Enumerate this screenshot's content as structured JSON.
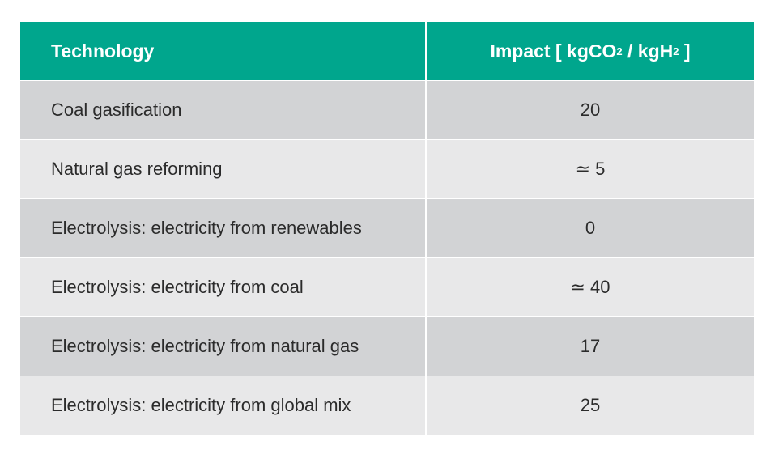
{
  "table": {
    "headers": {
      "technology": "Technology",
      "impact_prefix": "Impact [ kgCO",
      "impact_sub1": "2",
      "impact_mid": " / kgH",
      "impact_sub2": "2",
      "impact_suffix": " ]"
    },
    "rows": [
      {
        "technology": "Coal gasification",
        "impact": "20"
      },
      {
        "technology": "Natural gas reforming",
        "impact": "≃ 5"
      },
      {
        "technology": "Electrolysis: electricity from renewables",
        "impact": "0"
      },
      {
        "technology": "Electrolysis: electricity from coal",
        "impact": "≃ 40"
      },
      {
        "technology": "Electrolysis: electricity from natural gas",
        "impact": "17"
      },
      {
        "technology": "Electrolysis: electricity from global mix",
        "impact": "25"
      }
    ],
    "colors": {
      "header": "#00a68d",
      "row_dark": "#d2d3d5",
      "row_light": "#e8e8e9"
    }
  }
}
